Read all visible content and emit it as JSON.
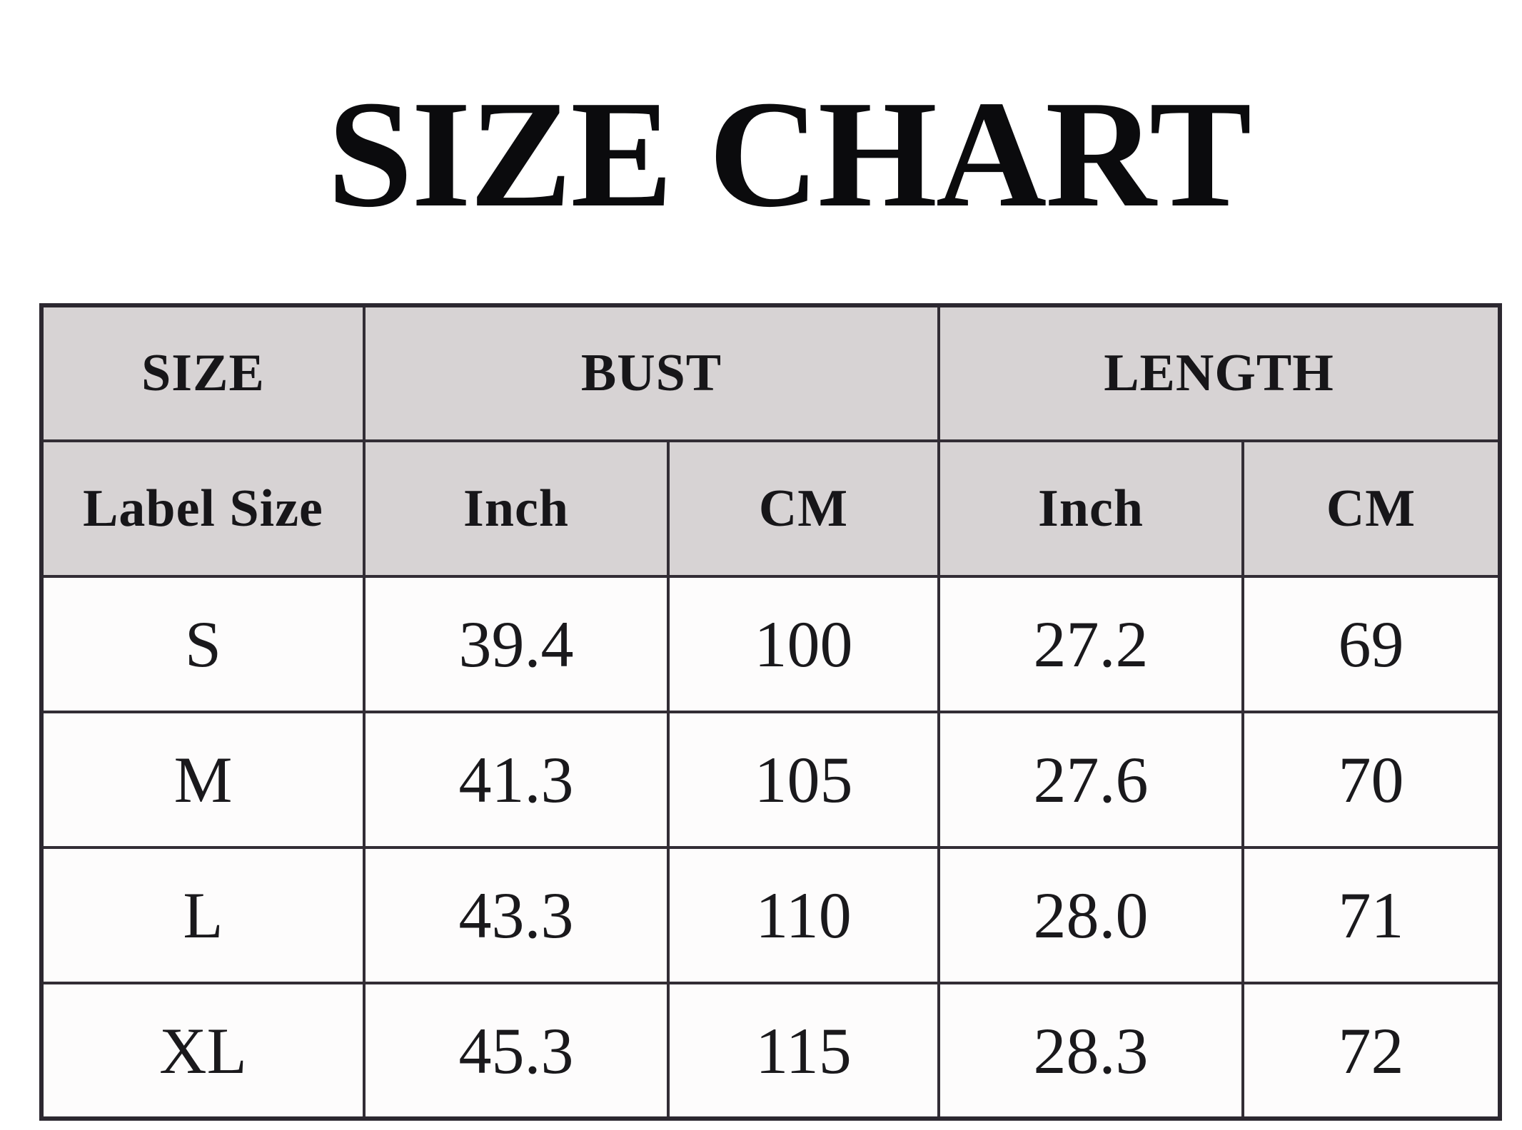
{
  "title": "SIZE CHART",
  "table": {
    "group_headers": {
      "size": "SIZE",
      "bust": "BUST",
      "length": "LENGTH"
    },
    "sub_headers": {
      "label_size": "Label Size",
      "bust_inch": "Inch",
      "bust_cm": "CM",
      "length_inch": "Inch",
      "length_cm": "CM"
    },
    "rows": [
      {
        "label": "S",
        "bust_inch": "39.4",
        "bust_cm": "100",
        "length_inch": "27.2",
        "length_cm": "69"
      },
      {
        "label": "M",
        "bust_inch": "41.3",
        "bust_cm": "105",
        "length_inch": "27.6",
        "length_cm": "70"
      },
      {
        "label": "L",
        "bust_inch": "43.3",
        "bust_cm": "110",
        "length_inch": "28.0",
        "length_cm": "71"
      },
      {
        "label": "XL",
        "bust_inch": "45.3",
        "bust_cm": "115",
        "length_inch": "28.3",
        "length_cm": "72"
      }
    ]
  },
  "colors": {
    "header_bg": "#d7d3d4",
    "border": "#322d35",
    "cell_bg": "#fdfcfc",
    "text": "#1a191c",
    "title_text": "#0b0b0d"
  },
  "chart_data": {
    "type": "table",
    "title": "SIZE CHART",
    "columns": [
      "Label Size",
      "Bust (Inch)",
      "Bust (CM)",
      "Length (Inch)",
      "Length (CM)"
    ],
    "rows": [
      [
        "S",
        39.4,
        100,
        27.2,
        69
      ],
      [
        "M",
        41.3,
        105,
        27.6,
        70
      ],
      [
        "L",
        43.3,
        110,
        28.0,
        71
      ],
      [
        "XL",
        45.3,
        115,
        28.3,
        72
      ]
    ],
    "units": {
      "bust": [
        "Inch",
        "CM"
      ],
      "length": [
        "Inch",
        "CM"
      ]
    },
    "layout_hints": {
      "header_background": "#d7d3d4",
      "grid": true,
      "title_position": "top-center"
    }
  }
}
